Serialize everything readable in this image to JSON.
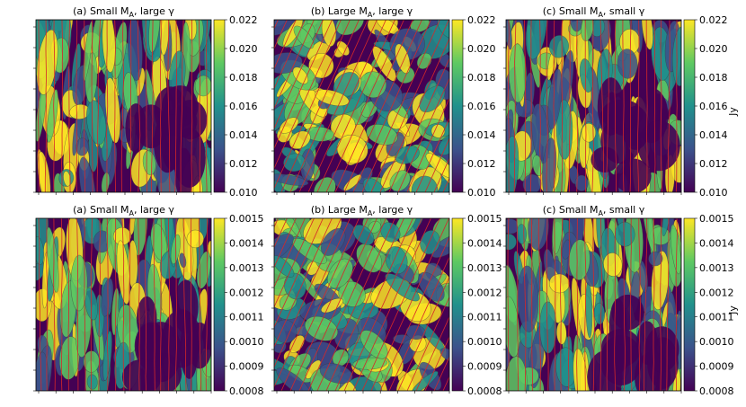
{
  "figure": {
    "colormap": [
      "#440154",
      "#3b528b",
      "#21918c",
      "#5ec962",
      "#fde725"
    ],
    "field_line_color": "#d62728",
    "contour_color": "#3a3a3a"
  },
  "chart_data": [
    {
      "type": "heatmap",
      "title": "(a) Small M$_A$, large $\\gamma$",
      "title_text": "(a) Small M",
      "title_sub": "A",
      "title_rest": ", large γ",
      "colorbar": {
        "ticks": [
          "0.022",
          "0.020",
          "0.018",
          "0.016",
          "0.014",
          "0.012",
          "0.010"
        ],
        "range": [
          0.01,
          0.022
        ],
        "label": ""
      },
      "field_lines": "near-vertical",
      "row": 1,
      "col": 1
    },
    {
      "type": "heatmap",
      "title_text": "(b) Large M",
      "title_sub": "A",
      "title_rest": ", large γ",
      "colorbar": {
        "ticks": [
          "0.022",
          "0.020",
          "0.018",
          "0.016",
          "0.014",
          "0.012",
          "0.010"
        ],
        "range": [
          0.01,
          0.022
        ],
        "label": ""
      },
      "field_lines": "tilted",
      "row": 1,
      "col": 2
    },
    {
      "type": "heatmap",
      "title_text": "(c) Small M",
      "title_sub": "A",
      "title_rest": ", small γ",
      "colorbar": {
        "ticks": [
          "0.022",
          "0.020",
          "0.018",
          "0.016",
          "0.014",
          "0.012",
          "0.010"
        ],
        "range": [
          0.01,
          0.022
        ],
        "label": "Jy"
      },
      "field_lines": "near-vertical",
      "row": 1,
      "col": 3
    },
    {
      "type": "heatmap",
      "title_text": "(a) Small M",
      "title_sub": "A",
      "title_rest": ", large γ",
      "colorbar": {
        "ticks": [
          "0.0015",
          "0.0014",
          "0.0013",
          "0.0012",
          "0.0011",
          "0.0010",
          "0.0009",
          "0.0008"
        ],
        "range": [
          0.0008,
          0.0015
        ],
        "label": ""
      },
      "field_lines": "near-vertical",
      "row": 2,
      "col": 1
    },
    {
      "type": "heatmap",
      "title_text": "(b) Large M",
      "title_sub": "A",
      "title_rest": ", large γ",
      "colorbar": {
        "ticks": [
          "0.0015",
          "0.0014",
          "0.0013",
          "0.0012",
          "0.0011",
          "0.0010",
          "0.0009",
          "0.0008"
        ],
        "range": [
          0.0008,
          0.0015
        ],
        "label": ""
      },
      "field_lines": "tilted",
      "row": 2,
      "col": 2
    },
    {
      "type": "heatmap",
      "title_text": "(c) Small M",
      "title_sub": "A",
      "title_rest": ", small γ",
      "colorbar": {
        "ticks": [
          "0.0015",
          "0.0014",
          "0.0013",
          "0.0012",
          "0.0011",
          "0.0010",
          "0.0009",
          "0.0008"
        ],
        "range": [
          0.0008,
          0.0015
        ],
        "label": "Jy"
      },
      "field_lines": "near-vertical",
      "row": 2,
      "col": 3
    }
  ]
}
